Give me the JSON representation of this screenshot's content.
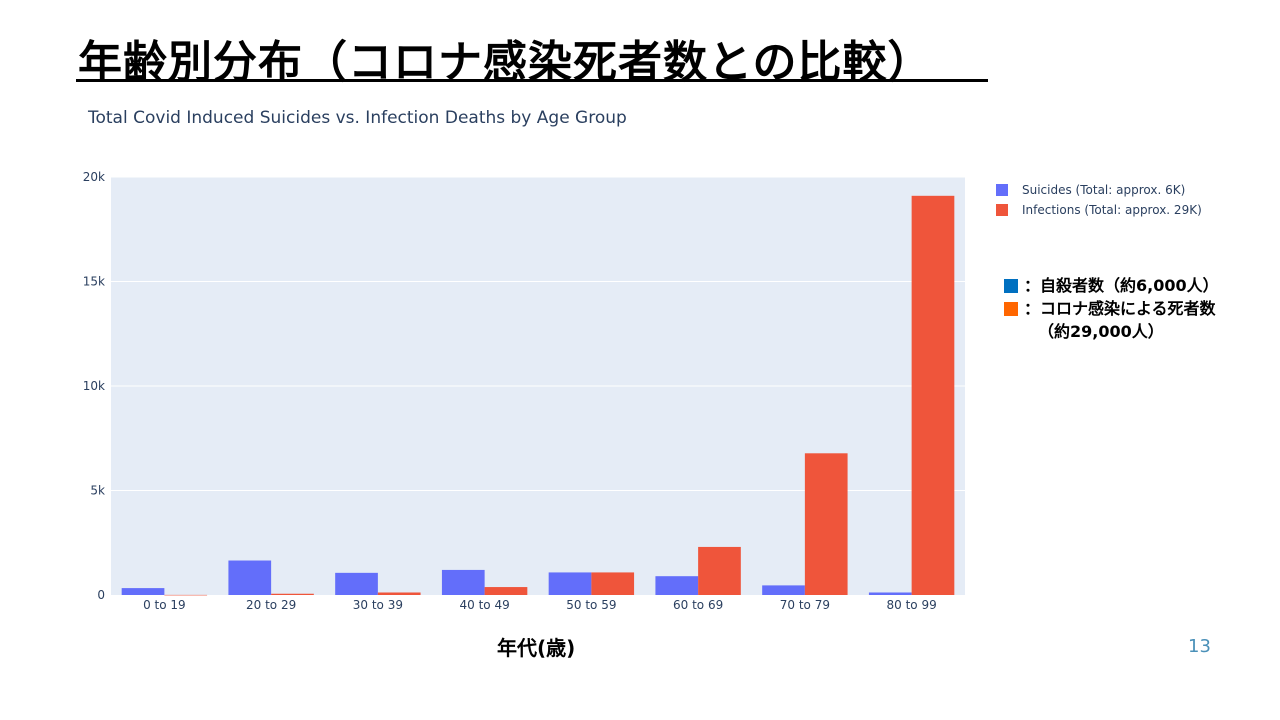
{
  "slide": {
    "title": "年齢別分布（コロナ感染死者数との比較）",
    "x_axis_title": "年代(歳)",
    "page_number": "13",
    "note": {
      "line1": "：自殺者数（約6,000人）",
      "line2": "：コロナ感染による死者数",
      "line3": "（約29,000人）",
      "color1": "#0070c0",
      "color2": "#ff6600"
    }
  },
  "chart_data": {
    "type": "bar",
    "title": "Total Covid Induced Suicides vs. Infection Deaths by Age Group",
    "xlabel": "",
    "ylabel": "",
    "categories": [
      "0 to 19",
      "20 to 29",
      "30 to 39",
      "40 to 49",
      "50 to 59",
      "60 to 69",
      "70 to 79",
      "80 to 99"
    ],
    "series": [
      {
        "name": "Suicides (Total: approx. 6K)",
        "color": "#636efa",
        "values": [
          330,
          1650,
          1060,
          1200,
          1080,
          900,
          460,
          120
        ]
      },
      {
        "name": "Infections (Total: approx. 29K)",
        "color": "#ef553b",
        "values": [
          5,
          60,
          120,
          380,
          1080,
          2300,
          6780,
          19100
        ]
      }
    ],
    "ylim": [
      0,
      20000
    ],
    "yticks": [
      0,
      5000,
      10000,
      15000,
      20000
    ],
    "ytick_labels": [
      "0",
      "5k",
      "10k",
      "15k",
      "20k"
    ],
    "grid": true,
    "legend": "top-right",
    "plot_bg": "#e5ecf6"
  }
}
